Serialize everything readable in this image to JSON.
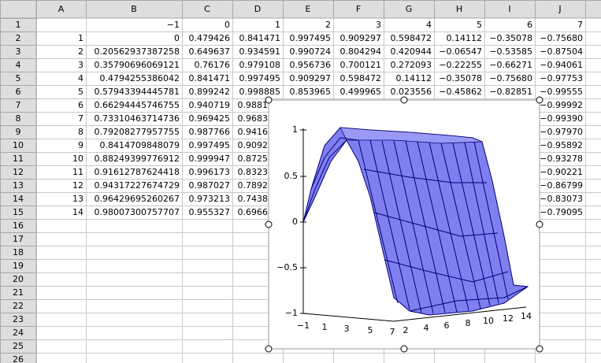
{
  "columns": [
    "A",
    "B",
    "C",
    "D",
    "E",
    "F",
    "G",
    "H",
    "I",
    "J"
  ],
  "rows": [
    {
      "label": "1",
      "cells": [
        null,
        "−1",
        "0",
        "1",
        "2",
        "3",
        "4",
        "5",
        "6",
        "7"
      ]
    },
    {
      "label": "2",
      "cells": [
        "1",
        "0",
        "0.479426",
        "0.841471",
        "0.997495",
        "0.909297",
        "0.598472",
        "0.14112",
        "−0.35078",
        "−0.75680"
      ]
    },
    {
      "label": "3",
      "cells": [
        "2",
        "0.20562937387258",
        "0.649637",
        "0.934591",
        "0.990724",
        "0.804294",
        "0.420944",
        "−0.06547",
        "−0.53585",
        "−0.87504"
      ]
    },
    {
      "label": "4",
      "cells": [
        "3",
        "0.35790696069121",
        "0.76176",
        "0.979108",
        "0.956736",
        "0.700121",
        "0.272093",
        "−0.22255",
        "−0.66271",
        "−0.94061"
      ]
    },
    {
      "label": "5",
      "cells": [
        "4",
        "0.4794255386042",
        "0.841471",
        "0.997495",
        "0.909297",
        "0.598472",
        "0.14112",
        "−0.35078",
        "−0.75680",
        "−0.97753"
      ]
    },
    {
      "label": "6",
      "cells": [
        "5",
        "0.57943394445781",
        "0.899242",
        "0.998885",
        "0.853965",
        "0.499965",
        "0.023556",
        "−0.45862",
        "−0.82851",
        "−0.99555"
      ]
    },
    {
      "label": "7",
      "cells": [
        "6",
        "0.66294445746755",
        "0.940719",
        "0.9881",
        null,
        null,
        null,
        null,
        null,
        "−0.99992"
      ]
    },
    {
      "label": "8",
      "cells": [
        "7",
        "0.73310463714736",
        "0.969425",
        "0.9683",
        null,
        null,
        null,
        null,
        null,
        "−0.99390"
      ]
    },
    {
      "label": "9",
      "cells": [
        "8",
        "0.79208277957755",
        "0.987766",
        "0.9416",
        null,
        null,
        null,
        null,
        null,
        "−0.97970"
      ]
    },
    {
      "label": "10",
      "cells": [
        "9",
        "0.8414709848079",
        "0.997495",
        "0.9092",
        null,
        null,
        null,
        null,
        null,
        "−0.95892"
      ]
    },
    {
      "label": "11",
      "cells": [
        "10",
        "0.88249399776912",
        "0.999947",
        "0.8725",
        null,
        null,
        null,
        null,
        null,
        "−0.93278"
      ]
    },
    {
      "label": "12",
      "cells": [
        "11",
        "0.91612787624418",
        "0.996173",
        "0.8323",
        null,
        null,
        null,
        null,
        null,
        "−0.90221"
      ]
    },
    {
      "label": "13",
      "cells": [
        "12",
        "0.94317227674729",
        "0.987027",
        "0.7892",
        null,
        null,
        null,
        null,
        null,
        "−0.86799"
      ]
    },
    {
      "label": "14",
      "cells": [
        "13",
        "0.96429695260267",
        "0.973213",
        "0.7438",
        null,
        null,
        null,
        null,
        null,
        "−0.83073"
      ]
    },
    {
      "label": "15",
      "cells": [
        "14",
        "0.98007300757707",
        "0.955327",
        "0.6966",
        null,
        null,
        null,
        null,
        null,
        "−0.79095"
      ]
    },
    {
      "label": "16"
    },
    {
      "label": "17"
    },
    {
      "label": "18"
    },
    {
      "label": "19"
    },
    {
      "label": "20"
    },
    {
      "label": "21"
    },
    {
      "label": "22"
    },
    {
      "label": "23"
    },
    {
      "label": "24"
    },
    {
      "label": "25"
    },
    {
      "label": "26"
    }
  ],
  "chart": {
    "z_ticks": [
      "1",
      "0.5",
      "0",
      "−0.5",
      "−1"
    ],
    "x_ticks": [
      "−1",
      "1",
      "3",
      "5",
      "7"
    ],
    "y_ticks": [
      "2",
      "4",
      "6",
      "8",
      "10",
      "12",
      "14"
    ]
  }
}
